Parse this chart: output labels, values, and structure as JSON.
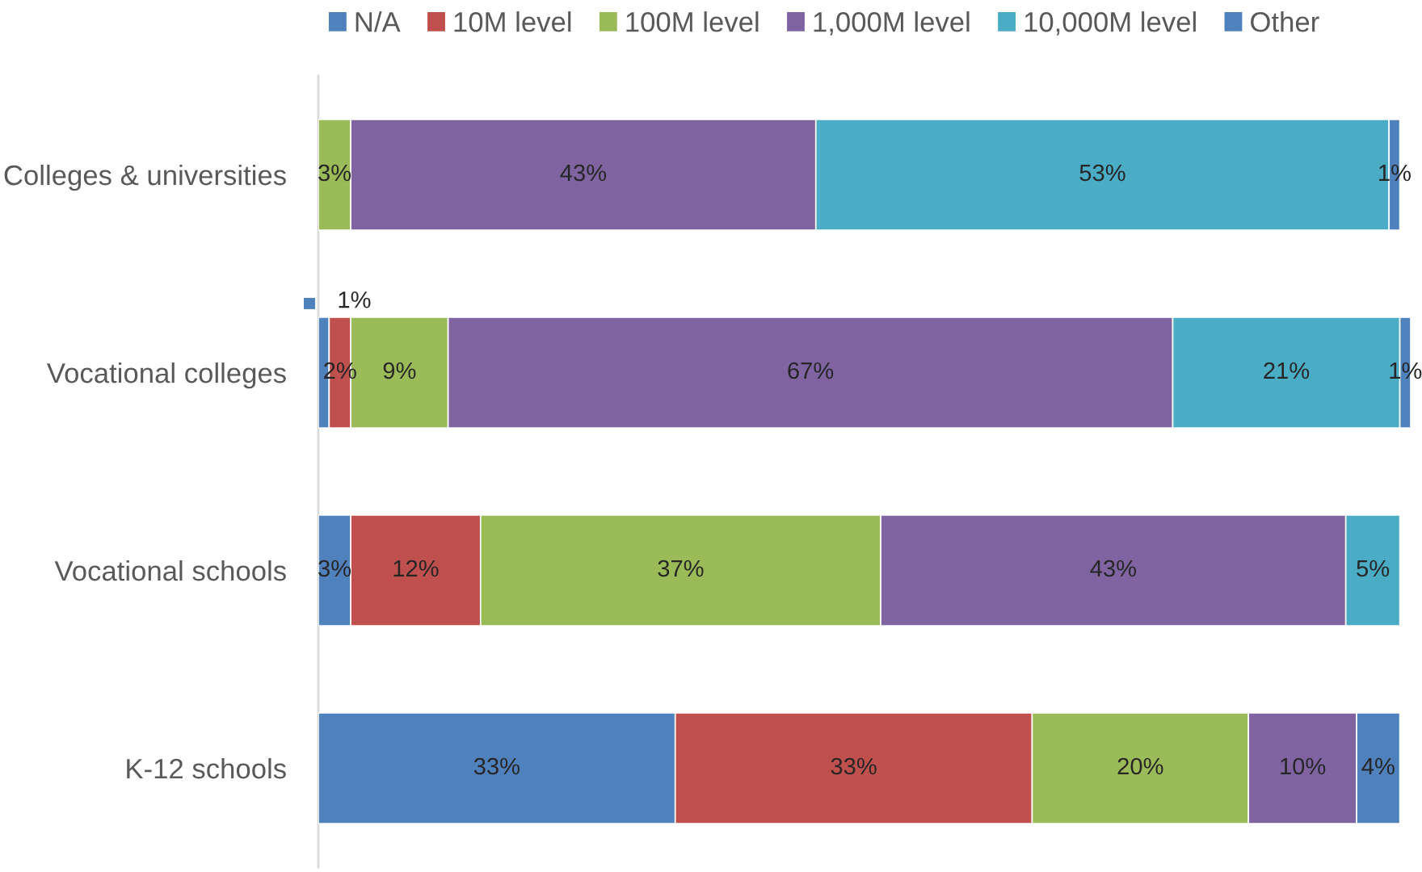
{
  "chart_data": {
    "type": "bar",
    "orientation": "horizontal",
    "stacked": true,
    "legend": "top",
    "tick_labels": "y",
    "categories": [
      "Colleges & universities",
      "Vocational colleges",
      "Vocational schools",
      "K-12 schools"
    ],
    "series": [
      {
        "name": "N/A",
        "color": "#4f81bd",
        "values": [
          null,
          1,
          3,
          33
        ],
        "value_labels": [
          null,
          "1%",
          "3%",
          "33%"
        ]
      },
      {
        "name": "10M level",
        "color": "#c0504d",
        "values": [
          null,
          2,
          12,
          33
        ],
        "value_labels": [
          null,
          "2%",
          "12%",
          "33%"
        ]
      },
      {
        "name": "100M level",
        "color": "#9bbb59",
        "values": [
          3,
          9,
          37,
          20
        ],
        "value_labels": [
          "3%",
          "9%",
          "37%",
          "20%"
        ]
      },
      {
        "name": "1,000M level",
        "color": "#8064a2",
        "values": [
          43,
          67,
          43,
          10
        ],
        "value_labels": [
          "43%",
          "67%",
          "43%",
          "10%"
        ]
      },
      {
        "name": "10,000M level",
        "color": "#4bacc6",
        "values": [
          53,
          21,
          5,
          null
        ],
        "value_labels": [
          "53%",
          "21%",
          "5%",
          null
        ]
      },
      {
        "name": "Other",
        "color": "#4f81bd",
        "values": [
          1,
          1,
          null,
          4
        ],
        "value_labels": [
          "1%",
          "1%",
          null,
          "4%"
        ]
      }
    ]
  }
}
